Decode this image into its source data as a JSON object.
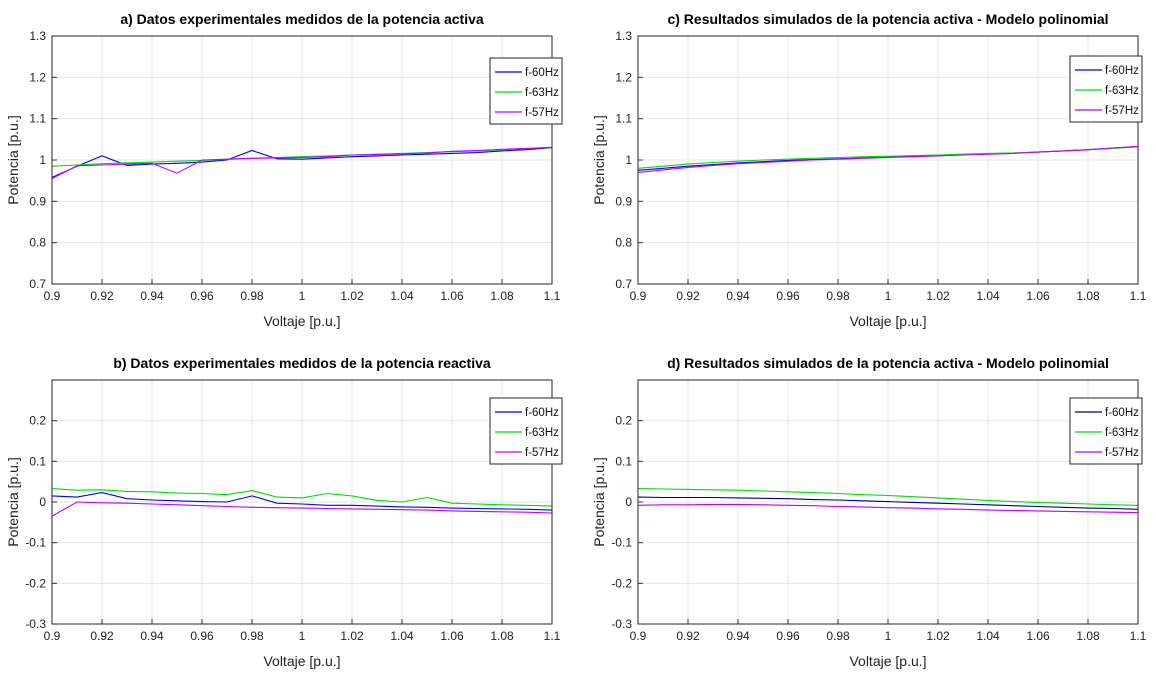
{
  "chart_data": [
    {
      "type": "line",
      "title": "a) Datos experimentales medidos de la potencia activa",
      "xlabel": "Voltaje [p.u.]",
      "ylabel": "Potencia [p.u.]",
      "xlim": [
        0.9,
        1.1
      ],
      "ylim": [
        0.7,
        1.3
      ],
      "xticks": [
        "0.9",
        "0.92",
        "0.94",
        "0.96",
        "0.98",
        "1",
        "1.02",
        "1.04",
        "1.06",
        "1.08",
        "1.1"
      ],
      "yticks": [
        "0.7",
        "0.8",
        "0.9",
        "1",
        "1.1",
        "1.2",
        "1.3"
      ],
      "grid": true,
      "legend_position": "top-right",
      "x": [
        0.9,
        0.91,
        0.92,
        0.93,
        0.94,
        0.95,
        0.96,
        0.97,
        0.98,
        0.99,
        1.0,
        1.01,
        1.02,
        1.03,
        1.04,
        1.05,
        1.06,
        1.07,
        1.08,
        1.09,
        1.1
      ],
      "series": [
        {
          "name": "f-60Hz",
          "color": "#0000ff",
          "values": [
            0.958,
            0.985,
            1.01,
            0.987,
            0.99,
            0.992,
            0.995,
            1.0,
            1.023,
            1.003,
            1.002,
            1.005,
            1.008,
            1.01,
            1.012,
            1.014,
            1.016,
            1.018,
            1.022,
            1.025,
            1.03
          ]
        },
        {
          "name": "f-63Hz",
          "color": "#00dd00",
          "values": [
            0.985,
            0.988,
            0.991,
            0.993,
            0.995,
            0.997,
            0.999,
            1.002,
            1.004,
            1.006,
            1.008,
            1.01,
            1.012,
            1.014,
            1.016,
            1.018,
            1.02,
            1.022,
            1.025,
            1.028,
            1.031
          ]
        },
        {
          "name": "f-57Hz",
          "color": "#bf00ff",
          "values": [
            0.955,
            0.986,
            0.988,
            0.99,
            0.992,
            0.968,
            1.0,
            1.002,
            1.004,
            1.005,
            1.006,
            1.008,
            1.012,
            1.013,
            1.015,
            1.017,
            1.021,
            1.023,
            1.026,
            1.028,
            1.03
          ]
        }
      ]
    },
    {
      "type": "line",
      "title": "b) Datos experimentales medidos de la potencia reactiva",
      "xlabel": "Voltaje [p.u.]",
      "ylabel": "Potencia [p.u.]",
      "xlim": [
        0.9,
        1.1
      ],
      "ylim": [
        -0.3,
        0.3
      ],
      "xticks": [
        "0.9",
        "0.92",
        "0.94",
        "0.96",
        "0.98",
        "1",
        "1.02",
        "1.04",
        "1.06",
        "1.08",
        "1.1"
      ],
      "yticks": [
        "-0.3",
        "-0.2",
        "-0.1",
        "0",
        "0.1",
        "0.2"
      ],
      "grid": true,
      "legend_position": "top-right",
      "x": [
        0.9,
        0.91,
        0.92,
        0.93,
        0.94,
        0.95,
        0.96,
        0.97,
        0.98,
        0.99,
        1.0,
        1.01,
        1.02,
        1.03,
        1.04,
        1.05,
        1.06,
        1.07,
        1.08,
        1.09,
        1.1
      ],
      "series": [
        {
          "name": "f-60Hz",
          "color": "#0000ff",
          "values": [
            0.015,
            0.012,
            0.023,
            0.008,
            0.005,
            0.003,
            0.001,
            0.0,
            0.015,
            -0.003,
            -0.005,
            -0.008,
            -0.008,
            -0.01,
            -0.012,
            -0.013,
            -0.015,
            -0.016,
            -0.017,
            -0.018,
            -0.02
          ]
        },
        {
          "name": "f-63Hz",
          "color": "#00dd00",
          "values": [
            0.033,
            0.029,
            0.03,
            0.026,
            0.025,
            0.022,
            0.021,
            0.018,
            0.028,
            0.012,
            0.01,
            0.021,
            0.015,
            0.004,
            0.0,
            0.011,
            -0.003,
            -0.005,
            -0.007,
            -0.008,
            -0.01
          ]
        },
        {
          "name": "f-57Hz",
          "color": "#bf00ff",
          "values": [
            -0.035,
            0.0,
            -0.002,
            -0.003,
            -0.005,
            -0.007,
            -0.009,
            -0.011,
            -0.013,
            -0.014,
            -0.015,
            -0.016,
            -0.017,
            -0.018,
            -0.019,
            -0.02,
            -0.022,
            -0.023,
            -0.024,
            -0.025,
            -0.027
          ]
        }
      ]
    },
    {
      "type": "line",
      "title": "c) Resultados simulados de la potencia activa - Modelo polinomial",
      "xlabel": "Voltaje [p.u.]",
      "ylabel": "Potencia [p.u.]",
      "xlim": [
        0.9,
        1.1
      ],
      "ylim": [
        0.7,
        1.3
      ],
      "xticks": [
        "0.9",
        "0.92",
        "0.94",
        "0.96",
        "0.98",
        "1",
        "1.02",
        "1.04",
        "1.06",
        "1.08",
        "1.1"
      ],
      "yticks": [
        "0.7",
        "0.8",
        "0.9",
        "1",
        "1.1",
        "1.2",
        "1.3"
      ],
      "grid": true,
      "legend_position": "top-right",
      "x": [
        0.9,
        0.91,
        0.92,
        0.93,
        0.94,
        0.95,
        0.96,
        0.97,
        0.98,
        0.99,
        1.0,
        1.01,
        1.02,
        1.03,
        1.04,
        1.05,
        1.06,
        1.07,
        1.08,
        1.09,
        1.1
      ],
      "series": [
        {
          "name": "f-60Hz",
          "color": "#0000ff",
          "values": [
            0.975,
            0.98,
            0.985,
            0.989,
            0.993,
            0.996,
            0.999,
            1.001,
            1.003,
            1.005,
            1.007,
            1.009,
            1.011,
            1.013,
            1.015,
            1.017,
            1.019,
            1.022,
            1.025,
            1.029,
            1.033
          ]
        },
        {
          "name": "f-63Hz",
          "color": "#00dd00",
          "values": [
            0.98,
            0.985,
            0.99,
            0.994,
            0.997,
            1.0,
            1.002,
            1.004,
            1.006,
            1.008,
            1.009,
            1.011,
            1.012,
            1.014,
            1.016,
            1.017,
            1.019,
            1.022,
            1.025,
            1.028,
            1.032
          ]
        },
        {
          "name": "f-57Hz",
          "color": "#bf00ff",
          "values": [
            0.97,
            0.976,
            0.982,
            0.987,
            0.991,
            0.994,
            0.997,
            1.0,
            1.002,
            1.004,
            1.006,
            1.008,
            1.01,
            1.012,
            1.014,
            1.016,
            1.019,
            1.022,
            1.025,
            1.029,
            1.033
          ]
        }
      ]
    },
    {
      "type": "line",
      "title": "d) Resultados simulados de la potencia activa - Modelo polinomial",
      "xlabel": "Voltaje [p.u.]",
      "ylabel": "Potencia [p.u.]",
      "xlim": [
        0.9,
        1.1
      ],
      "ylim": [
        -0.3,
        0.3
      ],
      "xticks": [
        "0.9",
        "0.92",
        "0.94",
        "0.96",
        "0.98",
        "1",
        "1.02",
        "1.04",
        "1.06",
        "1.08",
        "1.1"
      ],
      "yticks": [
        "-0.3",
        "-0.2",
        "-0.1",
        "0",
        "0.1",
        "0.2"
      ],
      "grid": true,
      "legend_position": "top-right",
      "x": [
        0.9,
        0.91,
        0.92,
        0.93,
        0.94,
        0.95,
        0.96,
        0.97,
        0.98,
        0.99,
        1.0,
        1.01,
        1.02,
        1.03,
        1.04,
        1.05,
        1.06,
        1.07,
        1.08,
        1.09,
        1.1
      ],
      "series": [
        {
          "name": "f-60Hz",
          "color": "#000080",
          "values": [
            0.012,
            0.011,
            0.011,
            0.011,
            0.01,
            0.009,
            0.008,
            0.006,
            0.005,
            0.003,
            0.001,
            -0.001,
            -0.003,
            -0.005,
            -0.007,
            -0.009,
            -0.011,
            -0.013,
            -0.015,
            -0.016,
            -0.018
          ]
        },
        {
          "name": "f-63Hz",
          "color": "#00dd00",
          "values": [
            0.033,
            0.032,
            0.031,
            0.03,
            0.029,
            0.027,
            0.025,
            0.023,
            0.021,
            0.018,
            0.016,
            0.013,
            0.01,
            0.007,
            0.004,
            0.001,
            -0.001,
            -0.003,
            -0.005,
            -0.007,
            -0.008
          ]
        },
        {
          "name": "f-57Hz",
          "color": "#bf00ff",
          "values": [
            -0.008,
            -0.007,
            -0.007,
            -0.006,
            -0.006,
            -0.007,
            -0.008,
            -0.009,
            -0.011,
            -0.012,
            -0.014,
            -0.015,
            -0.017,
            -0.018,
            -0.02,
            -0.021,
            -0.022,
            -0.023,
            -0.024,
            -0.025,
            -0.026
          ]
        }
      ]
    }
  ]
}
